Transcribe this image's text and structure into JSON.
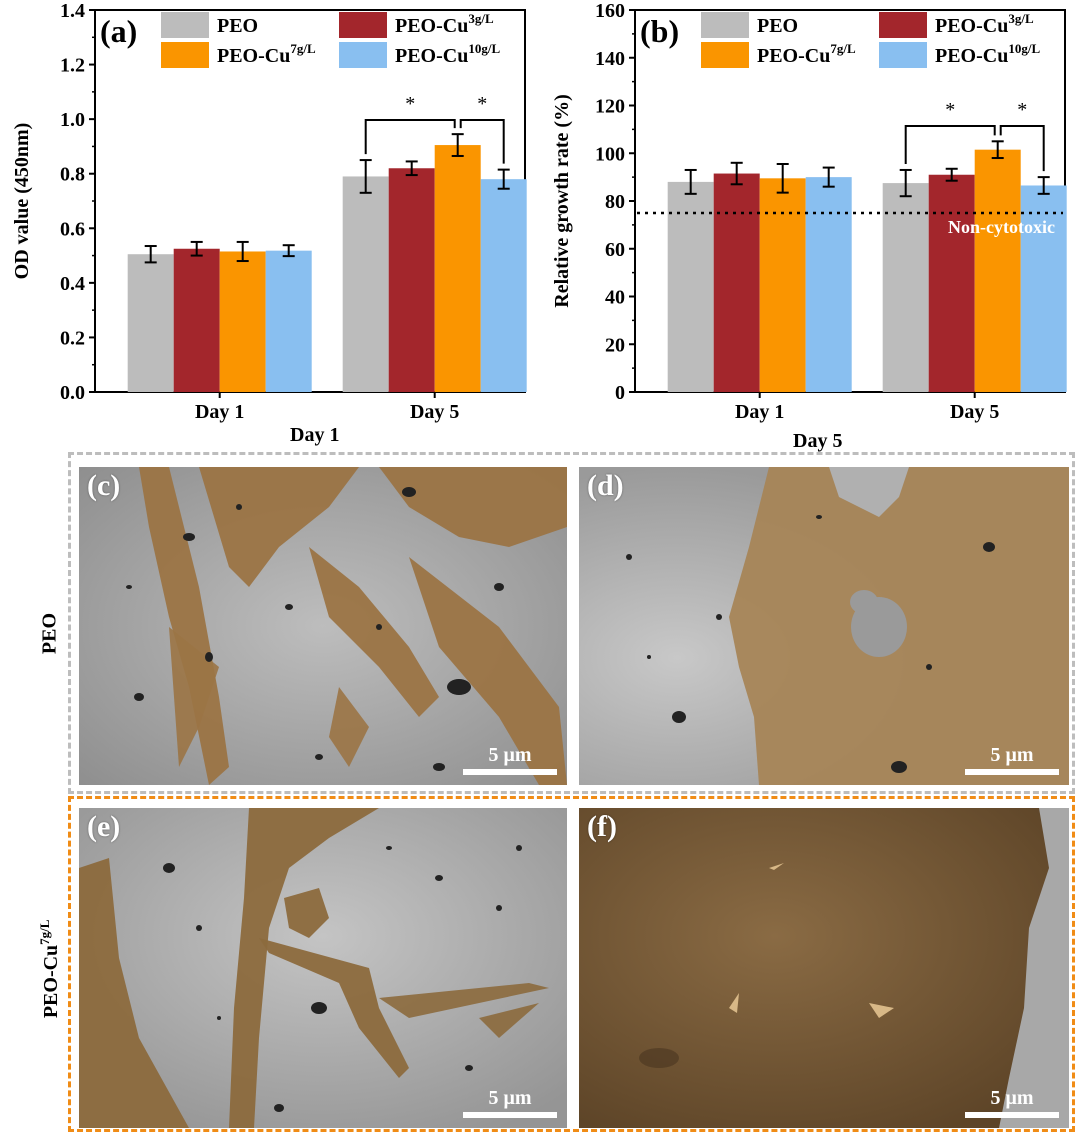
{
  "colors": {
    "PEO": "#bcbcbc",
    "PEO-Cu3": "#a3262c",
    "PEO-Cu7": "#fa9500",
    "PEO-Cu10": "#89bff0",
    "peo_frame": "#bdbdbd",
    "cu_frame": "#f08c16",
    "cell": "#9b7445",
    "substrate": "#a8a8a8"
  },
  "chart_data": [
    {
      "type": "bar",
      "panel": "(a)",
      "categories": [
        "Day 1",
        "Day 5"
      ],
      "ylabel": "OD value (450nm)",
      "ylim": [
        0.0,
        1.4
      ],
      "yticks": [
        "0.0",
        "0.2",
        "0.4",
        "0.6",
        "0.8",
        "1.0",
        "1.2",
        "1.4"
      ],
      "legend_position": "top",
      "series": [
        {
          "name": "PEO",
          "name_base": "PEO",
          "name_sup": "",
          "values": [
            0.505,
            0.79
          ],
          "errors": [
            0.03,
            0.06
          ]
        },
        {
          "name": "PEO-Cu3g/L",
          "name_base": "PEO-Cu",
          "name_sup": "3g/L",
          "values": [
            0.525,
            0.82
          ],
          "errors": [
            0.025,
            0.025
          ]
        },
        {
          "name": "PEO-Cu7g/L",
          "name_base": "PEO-Cu",
          "name_sup": "7g/L",
          "values": [
            0.515,
            0.905
          ],
          "errors": [
            0.035,
            0.04
          ]
        },
        {
          "name": "PEO-Cu10g/L",
          "name_base": "PEO-Cu",
          "name_sup": "10g/L",
          "values": [
            0.518,
            0.78
          ],
          "errors": [
            0.02,
            0.035
          ]
        }
      ],
      "significance": {
        "symbol": "*",
        "category": "Day 5",
        "pairs": [
          [
            0,
            2
          ],
          [
            2,
            3
          ]
        ]
      }
    },
    {
      "type": "bar",
      "panel": "(b)",
      "categories": [
        "Day 1",
        "Day 5"
      ],
      "ylabel": "Relative growth rate (%)",
      "ylim": [
        0,
        160
      ],
      "yticks": [
        "0",
        "20",
        "40",
        "60",
        "80",
        "100",
        "120",
        "140",
        "160"
      ],
      "legend_position": "top",
      "series": [
        {
          "name": "PEO",
          "name_base": "PEO",
          "name_sup": "",
          "values": [
            88,
            87.5
          ],
          "errors": [
            5,
            5.5
          ]
        },
        {
          "name": "PEO-Cu3g/L",
          "name_base": "PEO-Cu",
          "name_sup": "3g/L",
          "values": [
            91.5,
            91
          ],
          "errors": [
            4.5,
            2.5
          ]
        },
        {
          "name": "PEO-Cu7g/L",
          "name_base": "PEO-Cu",
          "name_sup": "7g/L",
          "values": [
            89.5,
            101.5
          ],
          "errors": [
            6,
            3.5
          ]
        },
        {
          "name": "PEO-Cu10g/L",
          "name_base": "PEO-Cu",
          "name_sup": "10g/L",
          "values": [
            90,
            86.5
          ],
          "errors": [
            4,
            3.5
          ]
        }
      ],
      "reference_line": {
        "value": 75,
        "label": "Non-cytotoxic"
      },
      "significance": {
        "symbol": "*",
        "category": "Day 5",
        "pairs": [
          [
            0,
            2
          ],
          [
            2,
            3
          ]
        ]
      }
    }
  ],
  "captions": {
    "left": "Day 1",
    "right": "Day 5"
  },
  "rows": {
    "peo": "PEO",
    "cu_base": "PEO-Cu",
    "cu_sup": "7g/L"
  },
  "panels": {
    "c": {
      "letter": "(c)",
      "scale": "5 μm"
    },
    "d": {
      "letter": "(d)",
      "scale": "5 μm"
    },
    "e": {
      "letter": "(e)",
      "scale": "5 μm"
    },
    "f": {
      "letter": "(f)",
      "scale": "5 μm"
    }
  }
}
